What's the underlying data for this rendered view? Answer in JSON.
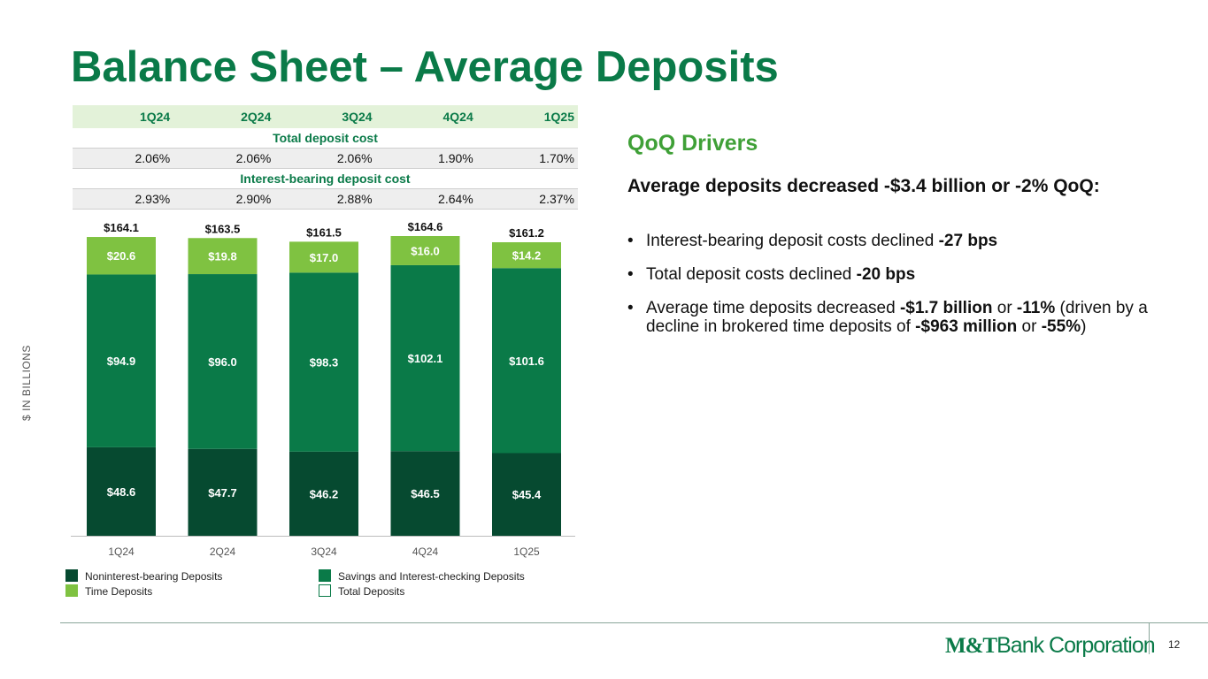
{
  "title": "Balance Sheet – Average Deposits",
  "cost_table": {
    "headers": [
      "1Q24",
      "2Q24",
      "3Q24",
      "4Q24",
      "1Q25"
    ],
    "total_label": "Total deposit cost",
    "total_values": [
      "2.06%",
      "2.06%",
      "2.06%",
      "1.90%",
      "1.70%"
    ],
    "ib_label": "Interest-bearing deposit cost",
    "ib_values": [
      "2.93%",
      "2.90%",
      "2.88%",
      "2.64%",
      "2.37%"
    ]
  },
  "chart_data": {
    "type": "bar",
    "stacked": true,
    "categories": [
      "1Q24",
      "2Q24",
      "3Q24",
      "4Q24",
      "1Q25"
    ],
    "ylabel": "$ IN BILLIONS",
    "series": [
      {
        "name": "Noninterest-bearing Deposits",
        "values": [
          48.6,
          47.7,
          46.2,
          46.5,
          45.4
        ],
        "labels": [
          "$48.6",
          "$47.7",
          "$46.2",
          "$46.5",
          "$45.4"
        ],
        "color": "#064a30"
      },
      {
        "name": "Savings and Interest-checking Deposits",
        "values": [
          94.9,
          96.0,
          98.3,
          102.1,
          101.6
        ],
        "labels": [
          "$94.9",
          "$96.0",
          "$98.3",
          "$102.1",
          "$101.6"
        ],
        "color": "#0a7a48"
      },
      {
        "name": "Time Deposits",
        "values": [
          20.6,
          19.8,
          17.0,
          16.0,
          14.2
        ],
        "labels": [
          "$20.6",
          "$19.8",
          "$17.0",
          "$16.0",
          "$14.2"
        ],
        "color": "#7fc241"
      }
    ],
    "totals": {
      "name": "Total Deposits",
      "values": [
        164.1,
        163.5,
        161.5,
        164.6,
        161.2
      ],
      "labels": [
        "$164.1",
        "$163.5",
        "$161.5",
        "$164.6",
        "$161.2"
      ]
    },
    "ylim": [
      0,
      164.6
    ],
    "grid": false,
    "legend_position": "bottom"
  },
  "legend": {
    "nib": "Noninterest-bearing Deposits",
    "sav": "Savings and Interest-checking Deposits",
    "time": "Time Deposits",
    "total": "Total Deposits"
  },
  "drivers": {
    "heading": "QoQ Drivers",
    "lead": "Average deposits decreased -$3.4 billion or -2% QoQ:",
    "bullets": [
      {
        "a": "Interest-bearing deposit costs declined ",
        "b": "-27 bps"
      },
      {
        "a": "Total deposit costs declined ",
        "b": "-20 bps"
      },
      {
        "a": "Average time deposits decreased ",
        "b": "-$1.7 billion",
        "c": " or ",
        "d": "-11%",
        "e": " (driven by a decline in brokered time deposits of ",
        "f": "-$963 million",
        "g": " or ",
        "h": "-55%",
        "i": ")"
      }
    ]
  },
  "footer": {
    "logo_mt": "M&T",
    "logo_rest": "Bank Corporation",
    "page_number": "12"
  },
  "colors": {
    "brand_green": "#0a7a48",
    "dark_green": "#064a30",
    "light_green": "#7fc241",
    "heading_green": "#3fa037"
  }
}
